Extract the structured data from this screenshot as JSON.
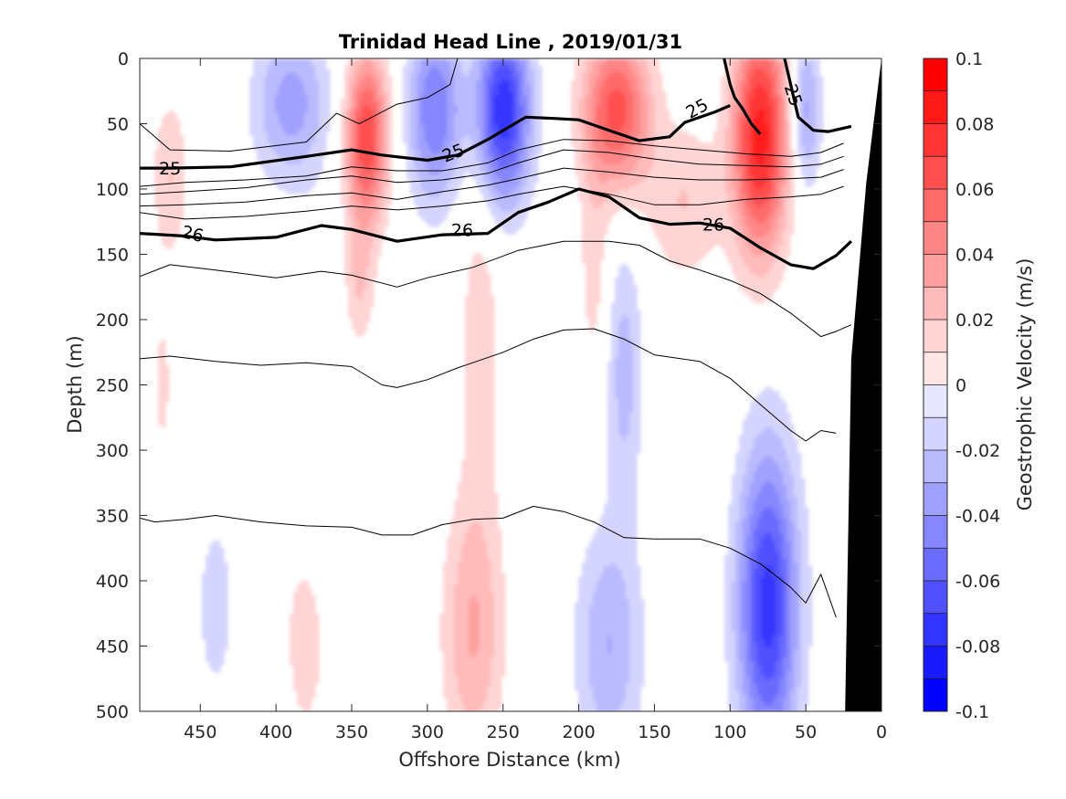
{
  "chart_data": {
    "type": "heatmap",
    "subtype": "filled-contour section with density contour overlay",
    "title": "Trinidad Head Line , 2019/01/31",
    "xlabel": "Offshore Distance (km)",
    "ylabel": "Depth (m)",
    "colorbar_label": "Geostrophic Velocity (m/s)",
    "xlim": [
      490,
      0
    ],
    "ylim": [
      0,
      500
    ],
    "x_reversed": true,
    "y_reversed": true,
    "x_ticks": [
      "450",
      "400",
      "350",
      "300",
      "250",
      "200",
      "150",
      "100",
      "50",
      "0"
    ],
    "y_ticks": [
      "0",
      "50",
      "100",
      "150",
      "200",
      "250",
      "300",
      "350",
      "400",
      "450",
      "500"
    ],
    "colorbar": {
      "range": [
        -0.1,
        0.1
      ],
      "levels": 20,
      "ticks": [
        "-0.1",
        "-0.08",
        "-0.06",
        "-0.04",
        "-0.02",
        "0",
        "0.02",
        "0.04",
        "0.06",
        "0.08",
        "0.1"
      ],
      "colors_neg_strong_to_weak": [
        "#0000ff",
        "#1a1aff",
        "#3434ff",
        "#5050ff",
        "#6b6bff",
        "#8686ff",
        "#a0a0ff",
        "#babaff",
        "#d4d4ff",
        "#e6e6ff"
      ],
      "colors_pos_weak_to_strong": [
        "#ffe6e6",
        "#ffd4d4",
        "#ffbaba",
        "#ffa0a0",
        "#ff8686",
        "#ff6b6b",
        "#ff5050",
        "#ff3434",
        "#ff1a1a",
        "#ff0000"
      ]
    },
    "velocity_cores": [
      {
        "x": 470,
        "depth": 90,
        "x_width": 12,
        "depth_width": 60,
        "value": 0.02
      },
      {
        "x": 390,
        "depth": 35,
        "x_width": 25,
        "depth_width": 60,
        "value": -0.035
      },
      {
        "x": 340,
        "depth": 60,
        "x_width": 14,
        "depth_width": 65,
        "value": 0.07
      },
      {
        "x": 345,
        "depth": 170,
        "x_width": 10,
        "depth_width": 50,
        "value": 0.02
      },
      {
        "x": 295,
        "depth": 40,
        "x_width": 18,
        "depth_width": 70,
        "value": -0.05
      },
      {
        "x": 250,
        "depth": 40,
        "x_width": 18,
        "depth_width": 70,
        "value": -0.08
      },
      {
        "x": 265,
        "depth": 200,
        "x_width": 15,
        "depth_width": 160,
        "value": 0.015
      },
      {
        "x": 175,
        "depth": 40,
        "x_width": 22,
        "depth_width": 60,
        "value": 0.065
      },
      {
        "x": 190,
        "depth": 160,
        "x_width": 10,
        "depth_width": 90,
        "value": 0.015
      },
      {
        "x": 130,
        "depth": 110,
        "x_width": 25,
        "depth_width": 60,
        "value": 0.02
      },
      {
        "x": 80,
        "depth": 60,
        "x_width": 18,
        "depth_width": 90,
        "value": 0.085
      },
      {
        "x": 50,
        "depth": 40,
        "x_width": 10,
        "depth_width": 60,
        "value": -0.035
      },
      {
        "x": 170,
        "depth": 240,
        "x_width": 12,
        "depth_width": 100,
        "value": -0.025
      },
      {
        "x": 375,
        "depth": 300,
        "x_width": 15,
        "depth_width": 150,
        "value": -0.01
      },
      {
        "x": 270,
        "depth": 440,
        "x_width": 20,
        "depth_width": 100,
        "value": 0.03
      },
      {
        "x": 180,
        "depth": 450,
        "x_width": 22,
        "depth_width": 90,
        "value": -0.03
      },
      {
        "x": 75,
        "depth": 420,
        "x_width": 20,
        "depth_width": 120,
        "value": -0.075
      },
      {
        "x": 440,
        "depth": 420,
        "x_width": 14,
        "depth_width": 80,
        "value": -0.015
      },
      {
        "x": 380,
        "depth": 440,
        "x_width": 14,
        "depth_width": 80,
        "value": 0.02
      },
      {
        "x": 475,
        "depth": 250,
        "x_width": 8,
        "depth_width": 80,
        "value": 0.012
      }
    ],
    "density_contours": [
      {
        "label": "25",
        "bold": true,
        "points": [
          [
            490,
            84
          ],
          [
            470,
            84
          ],
          [
            430,
            83
          ],
          [
            380,
            75
          ],
          [
            350,
            70
          ],
          [
            330,
            74
          ],
          [
            300,
            78
          ],
          [
            280,
            74
          ],
          [
            260,
            62
          ],
          [
            235,
            45
          ],
          [
            215,
            46
          ],
          [
            200,
            47
          ],
          [
            180,
            55
          ],
          [
            160,
            63
          ],
          [
            140,
            60
          ],
          [
            130,
            49
          ],
          [
            110,
            41
          ],
          [
            100,
            36
          ]
        ]
      },
      {
        "label": "25",
        "bold": true,
        "points": [
          [
            104,
            0
          ],
          [
            100,
            20
          ],
          [
            97,
            30
          ],
          [
            92,
            38
          ],
          [
            86,
            50
          ],
          [
            80,
            58
          ]
        ]
      },
      {
        "label": "25",
        "bold": true,
        "points": [
          [
            64,
            0
          ],
          [
            60,
            20
          ],
          [
            55,
            45
          ],
          [
            45,
            55
          ],
          [
            35,
            56
          ],
          [
            20,
            52
          ]
        ]
      },
      {
        "label": "26",
        "bold": true,
        "points": [
          [
            490,
            134
          ],
          [
            460,
            136
          ],
          [
            440,
            139
          ],
          [
            400,
            137
          ],
          [
            370,
            128
          ],
          [
            350,
            131
          ],
          [
            320,
            140
          ],
          [
            290,
            135
          ],
          [
            260,
            134
          ],
          [
            240,
            118
          ],
          [
            220,
            110
          ],
          [
            200,
            100
          ],
          [
            180,
            106
          ],
          [
            160,
            122
          ],
          [
            140,
            127
          ],
          [
            120,
            126
          ],
          [
            100,
            130
          ],
          [
            80,
            145
          ],
          [
            60,
            158
          ],
          [
            45,
            161
          ],
          [
            30,
            151
          ],
          [
            20,
            140
          ]
        ]
      },
      {
        "label": "",
        "bold": false,
        "points": [
          [
            490,
            50
          ],
          [
            470,
            70
          ],
          [
            430,
            71
          ],
          [
            380,
            64
          ],
          [
            360,
            42
          ],
          [
            345,
            50
          ],
          [
            320,
            35
          ],
          [
            300,
            30
          ],
          [
            285,
            20
          ],
          [
            280,
            0
          ]
        ]
      },
      {
        "label": "",
        "bold": false,
        "points": [
          [
            490,
            98
          ],
          [
            460,
            95
          ],
          [
            420,
            93
          ],
          [
            380,
            90
          ],
          [
            350,
            83
          ],
          [
            320,
            86
          ],
          [
            290,
            86
          ],
          [
            260,
            80
          ],
          [
            240,
            70
          ],
          [
            210,
            62
          ],
          [
            180,
            63
          ],
          [
            150,
            67
          ],
          [
            120,
            70
          ],
          [
            90,
            73
          ],
          [
            60,
            75
          ],
          [
            40,
            72
          ],
          [
            25,
            65
          ]
        ]
      },
      {
        "label": "",
        "bold": false,
        "points": [
          [
            490,
            104
          ],
          [
            460,
            102
          ],
          [
            420,
            99
          ],
          [
            380,
            93
          ],
          [
            350,
            90
          ],
          [
            320,
            95
          ],
          [
            290,
            93
          ],
          [
            260,
            88
          ],
          [
            240,
            80
          ],
          [
            210,
            70
          ],
          [
            180,
            72
          ],
          [
            150,
            77
          ],
          [
            120,
            81
          ],
          [
            90,
            82
          ],
          [
            60,
            83
          ],
          [
            40,
            81
          ],
          [
            25,
            75
          ]
        ]
      },
      {
        "label": "",
        "bold": false,
        "points": [
          [
            490,
            113
          ],
          [
            460,
            112
          ],
          [
            420,
            110
          ],
          [
            380,
            105
          ],
          [
            350,
            103
          ],
          [
            320,
            108
          ],
          [
            290,
            102
          ],
          [
            260,
            97
          ],
          [
            240,
            92
          ],
          [
            210,
            84
          ],
          [
            180,
            87
          ],
          [
            150,
            91
          ],
          [
            120,
            93
          ],
          [
            90,
            93
          ],
          [
            60,
            92
          ],
          [
            40,
            91
          ],
          [
            25,
            85
          ]
        ]
      },
      {
        "label": "",
        "bold": false,
        "points": [
          [
            490,
            118
          ],
          [
            460,
            123
          ],
          [
            420,
            121
          ],
          [
            380,
            117
          ],
          [
            350,
            113
          ],
          [
            320,
            116
          ],
          [
            290,
            113
          ],
          [
            260,
            109
          ],
          [
            240,
            104
          ],
          [
            210,
            98
          ],
          [
            180,
            104
          ],
          [
            150,
            112
          ],
          [
            120,
            112
          ],
          [
            90,
            108
          ],
          [
            60,
            106
          ],
          [
            40,
            104
          ],
          [
            25,
            98
          ]
        ]
      },
      {
        "label": "",
        "bold": false,
        "points": [
          [
            490,
            167
          ],
          [
            470,
            158
          ],
          [
            440,
            162
          ],
          [
            400,
            168
          ],
          [
            370,
            163
          ],
          [
            350,
            166
          ],
          [
            320,
            175
          ],
          [
            300,
            168
          ],
          [
            270,
            160
          ],
          [
            240,
            147
          ],
          [
            210,
            140
          ],
          [
            180,
            140
          ],
          [
            160,
            143
          ],
          [
            140,
            155
          ],
          [
            120,
            162
          ],
          [
            100,
            170
          ],
          [
            80,
            180
          ],
          [
            60,
            195
          ],
          [
            40,
            213
          ],
          [
            30,
            209
          ],
          [
            20,
            204
          ]
        ]
      },
      {
        "label": "",
        "bold": false,
        "points": [
          [
            490,
            230
          ],
          [
            470,
            228
          ],
          [
            440,
            232
          ],
          [
            410,
            235
          ],
          [
            380,
            233
          ],
          [
            350,
            236
          ],
          [
            330,
            250
          ],
          [
            320,
            252
          ],
          [
            300,
            246
          ],
          [
            280,
            237
          ],
          [
            250,
            225
          ],
          [
            230,
            215
          ],
          [
            210,
            208
          ],
          [
            190,
            207
          ],
          [
            170,
            215
          ],
          [
            150,
            227
          ],
          [
            120,
            232
          ],
          [
            100,
            245
          ],
          [
            80,
            265
          ],
          [
            60,
            285
          ],
          [
            50,
            293
          ],
          [
            40,
            285
          ],
          [
            30,
            287
          ]
        ]
      },
      {
        "label": "",
        "bold": false,
        "points": [
          [
            490,
            352
          ],
          [
            480,
            355
          ],
          [
            460,
            353
          ],
          [
            440,
            350
          ],
          [
            410,
            355
          ],
          [
            380,
            358
          ],
          [
            350,
            359
          ],
          [
            330,
            365
          ],
          [
            310,
            365
          ],
          [
            290,
            357
          ],
          [
            270,
            353
          ],
          [
            250,
            352
          ],
          [
            230,
            343
          ],
          [
            210,
            347
          ],
          [
            190,
            355
          ],
          [
            170,
            367
          ],
          [
            150,
            368
          ],
          [
            120,
            368
          ],
          [
            100,
            375
          ],
          [
            80,
            387
          ],
          [
            60,
            405
          ],
          [
            50,
            417
          ],
          [
            40,
            395
          ],
          [
            30,
            428
          ]
        ]
      }
    ],
    "contour_labels": [
      {
        "text": "25",
        "x": 470,
        "depth": 84,
        "angle": 0
      },
      {
        "text": "25",
        "x": 283,
        "depth": 72,
        "angle": -22
      },
      {
        "text": "25",
        "x": 122,
        "depth": 38,
        "angle": -28
      },
      {
        "text": "25",
        "x": 58,
        "depth": 28,
        "angle": 72
      },
      {
        "text": "26",
        "x": 455,
        "depth": 134,
        "angle": 14
      },
      {
        "text": "26",
        "x": 277,
        "depth": 131,
        "angle": 0
      },
      {
        "text": "26",
        "x": 111,
        "depth": 127,
        "angle": 0
      }
    ],
    "bathymetry": {
      "color": "#000000",
      "points": [
        [
          0,
          0
        ],
        [
          10,
          95
        ],
        [
          20,
          230
        ],
        [
          24,
          500
        ],
        [
          0,
          500
        ]
      ]
    }
  }
}
